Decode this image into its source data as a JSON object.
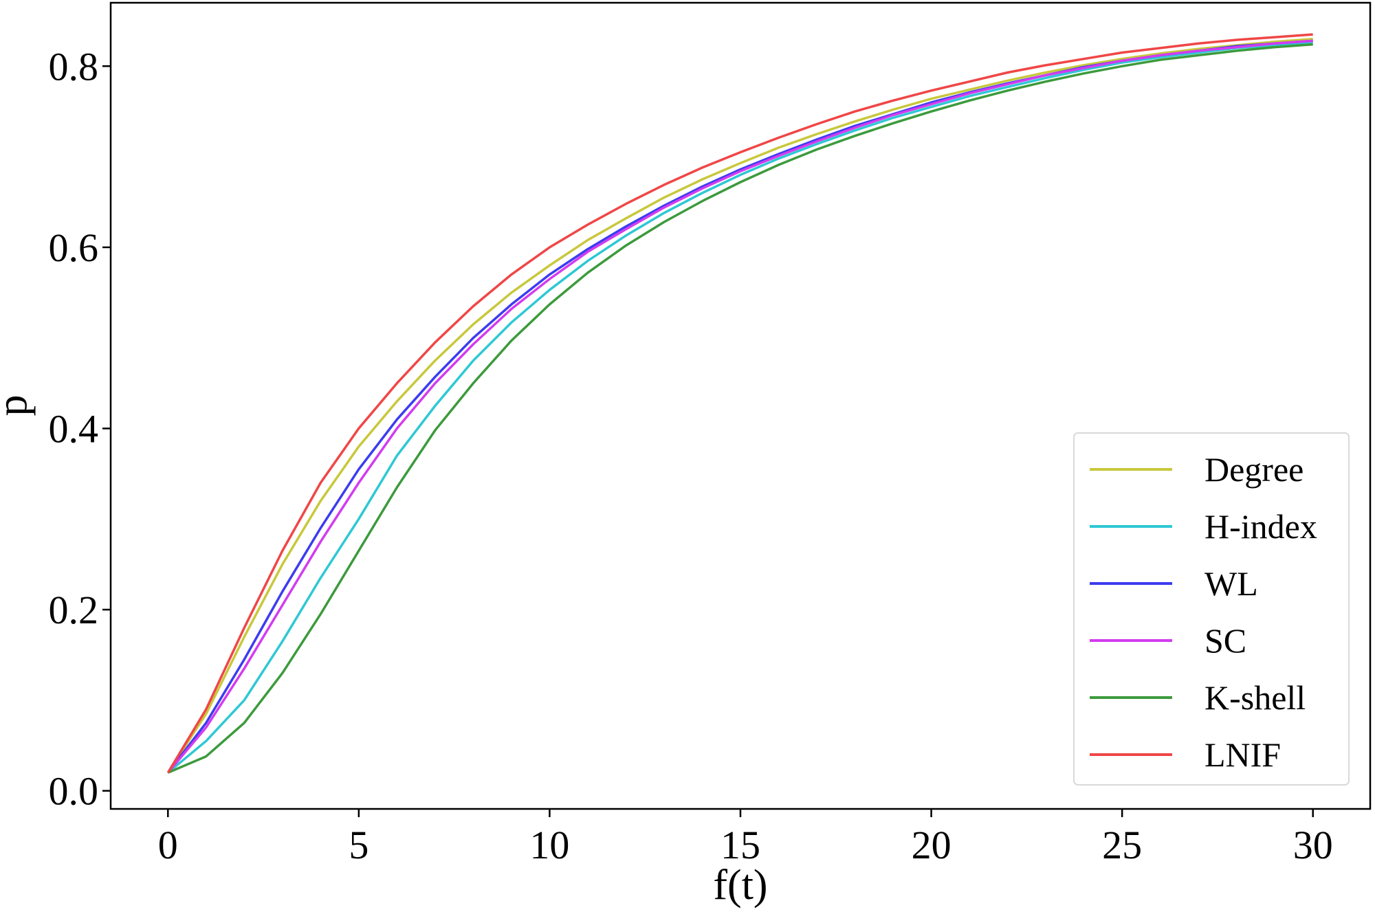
{
  "chart_data": {
    "type": "line",
    "title": "",
    "xlabel": "f(t)",
    "ylabel": "p",
    "xlim": [
      -1.5,
      31.5
    ],
    "ylim": [
      -0.02,
      0.87
    ],
    "xticks": [
      0,
      5,
      10,
      15,
      20,
      25,
      30
    ],
    "xtick_labels": [
      "0",
      "5",
      "10",
      "15",
      "20",
      "25",
      "30"
    ],
    "yticks": [
      0.0,
      0.2,
      0.4,
      0.6,
      0.8
    ],
    "ytick_labels": [
      "0.0",
      "0.2",
      "0.4",
      "0.6",
      "0.8"
    ],
    "grid": false,
    "legend_position": "lower-right",
    "x": [
      0,
      1,
      2,
      3,
      4,
      5,
      6,
      7,
      8,
      9,
      10,
      11,
      12,
      13,
      14,
      15,
      16,
      17,
      18,
      19,
      20,
      21,
      22,
      23,
      24,
      25,
      26,
      27,
      28,
      29,
      30
    ],
    "series": [
      {
        "name": "Degree",
        "color": "#c8c83c",
        "values": [
          0.02,
          0.085,
          0.17,
          0.25,
          0.32,
          0.38,
          0.43,
          0.475,
          0.515,
          0.55,
          0.58,
          0.608,
          0.632,
          0.655,
          0.675,
          0.693,
          0.71,
          0.725,
          0.739,
          0.752,
          0.764,
          0.774,
          0.784,
          0.793,
          0.801,
          0.808,
          0.814,
          0.819,
          0.823,
          0.827,
          0.83
        ]
      },
      {
        "name": "H-index",
        "color": "#2ec8d4",
        "values": [
          0.02,
          0.055,
          0.1,
          0.165,
          0.235,
          0.3,
          0.37,
          0.425,
          0.475,
          0.517,
          0.553,
          0.585,
          0.613,
          0.638,
          0.66,
          0.68,
          0.698,
          0.714,
          0.729,
          0.743,
          0.755,
          0.767,
          0.777,
          0.787,
          0.796,
          0.804,
          0.81,
          0.815,
          0.82,
          0.823,
          0.826
        ]
      },
      {
        "name": "WL",
        "color": "#3c3cf0",
        "values": [
          0.02,
          0.075,
          0.145,
          0.22,
          0.29,
          0.355,
          0.41,
          0.457,
          0.5,
          0.537,
          0.57,
          0.598,
          0.623,
          0.646,
          0.667,
          0.686,
          0.703,
          0.719,
          0.734,
          0.747,
          0.76,
          0.771,
          0.781,
          0.79,
          0.799,
          0.806,
          0.812,
          0.817,
          0.822,
          0.825,
          0.828
        ]
      },
      {
        "name": "SC",
        "color": "#d23cf0",
        "values": [
          0.02,
          0.07,
          0.135,
          0.205,
          0.275,
          0.34,
          0.4,
          0.45,
          0.493,
          0.532,
          0.565,
          0.595,
          0.62,
          0.644,
          0.665,
          0.684,
          0.701,
          0.717,
          0.732,
          0.746,
          0.758,
          0.77,
          0.78,
          0.79,
          0.798,
          0.806,
          0.812,
          0.817,
          0.821,
          0.825,
          0.828
        ]
      },
      {
        "name": "K-shell",
        "color": "#3c9a3c",
        "values": [
          0.02,
          0.038,
          0.075,
          0.13,
          0.195,
          0.265,
          0.335,
          0.398,
          0.45,
          0.497,
          0.537,
          0.572,
          0.602,
          0.628,
          0.651,
          0.672,
          0.691,
          0.708,
          0.723,
          0.737,
          0.75,
          0.762,
          0.773,
          0.783,
          0.792,
          0.8,
          0.807,
          0.812,
          0.817,
          0.821,
          0.824
        ]
      },
      {
        "name": "LNIF",
        "color": "#f04646",
        "values": [
          0.02,
          0.09,
          0.18,
          0.265,
          0.34,
          0.4,
          0.45,
          0.495,
          0.535,
          0.57,
          0.6,
          0.625,
          0.648,
          0.669,
          0.688,
          0.705,
          0.721,
          0.736,
          0.75,
          0.762,
          0.773,
          0.783,
          0.793,
          0.801,
          0.808,
          0.815,
          0.82,
          0.825,
          0.829,
          0.832,
          0.835
        ]
      }
    ]
  }
}
